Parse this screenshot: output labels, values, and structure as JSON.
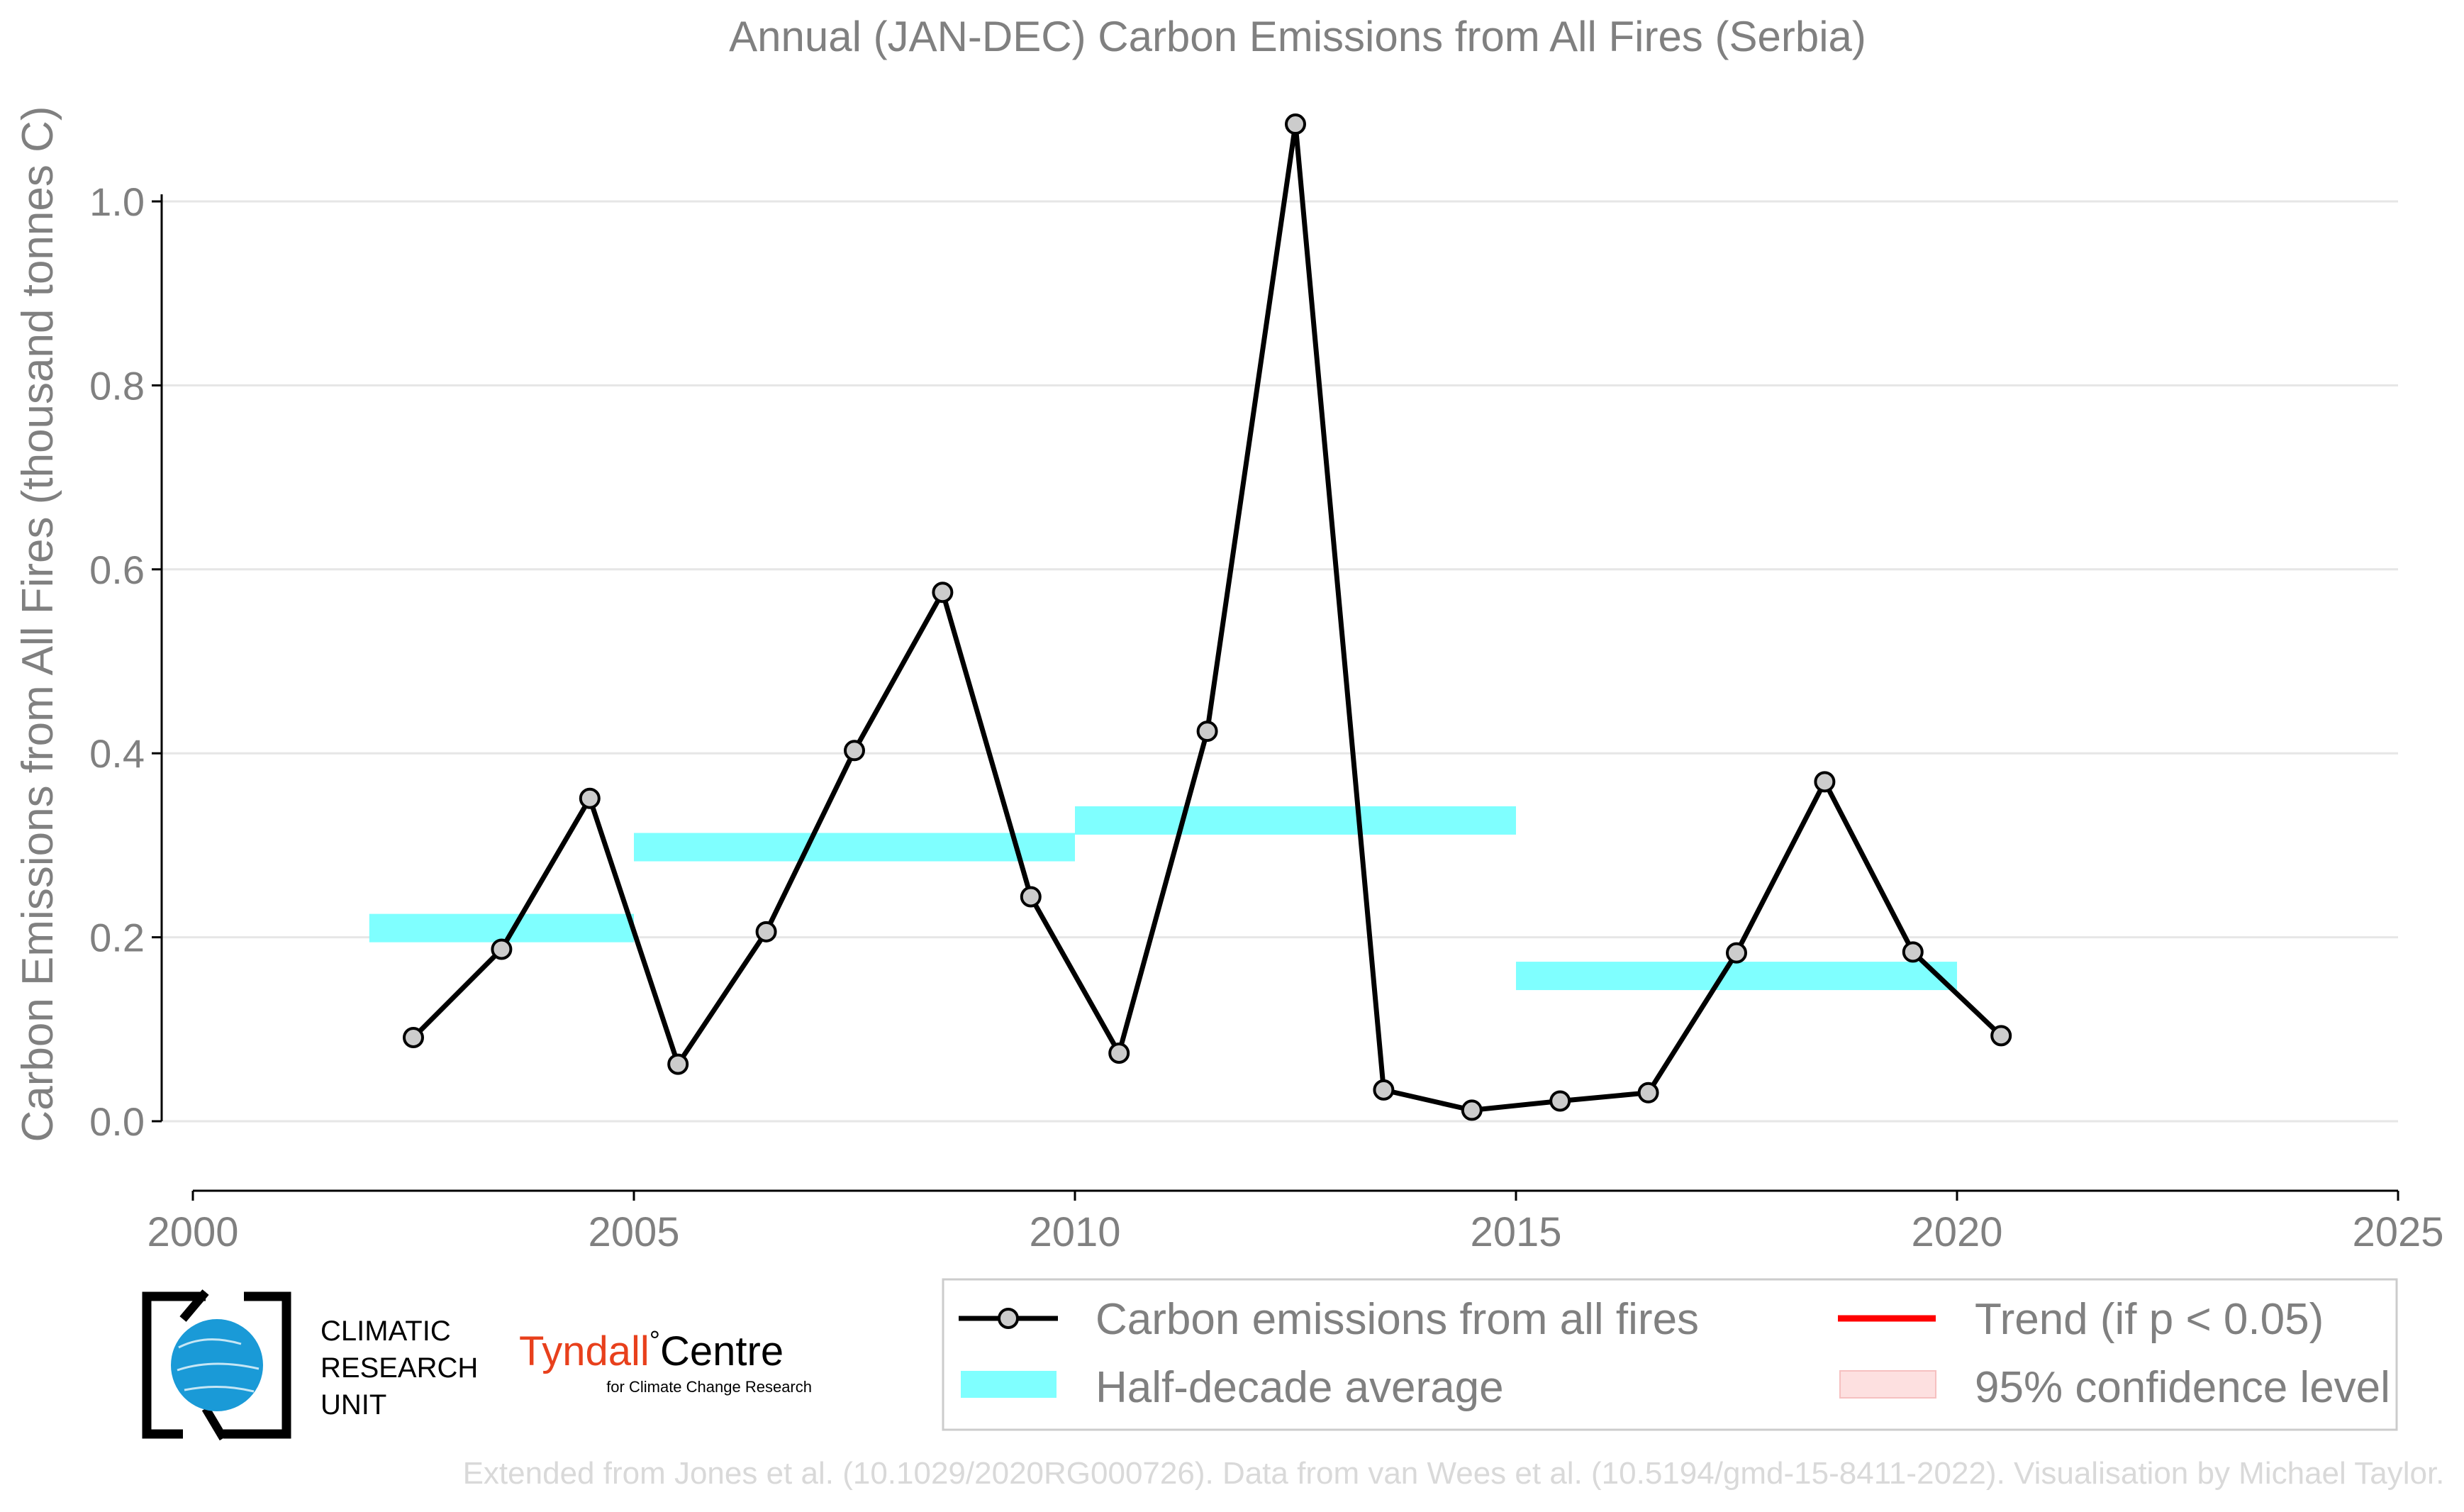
{
  "chart_data": {
    "type": "line",
    "title": "Annual (JAN-DEC) Carbon Emissions from All Fires (Serbia)",
    "xlabel": "",
    "ylabel": "Carbon Emissions from All Fires (thousand tonnes C)",
    "xlim": [
      2000,
      2025
    ],
    "ylim": [
      -0.075,
      1.1
    ],
    "x_ticks": [
      "2000",
      "2005",
      "2010",
      "2015",
      "2020",
      "2025"
    ],
    "y_ticks": [
      "0.0",
      "0.2",
      "0.4",
      "0.6",
      "0.8",
      "1.0"
    ],
    "grid": "horizontal",
    "legend_placement": "bottom-right",
    "series": [
      {
        "name": "Carbon emissions from all fires",
        "color": "#000000",
        "marker_fill": "#cccccc",
        "x": [
          2002.5,
          2003.5,
          2004.5,
          2005.5,
          2006.5,
          2007.5,
          2008.5,
          2009.5,
          2010.5,
          2011.5,
          2012.5,
          2013.5,
          2014.5,
          2015.5,
          2016.5,
          2017.5,
          2018.5,
          2019.5,
          2020.5
        ],
        "y": [
          0.091,
          0.187,
          0.351,
          0.062,
          0.206,
          0.403,
          0.575,
          0.244,
          0.074,
          0.424,
          1.084,
          0.034,
          0.012,
          0.022,
          0.031,
          0.183,
          0.369,
          0.184,
          0.093
        ]
      }
    ],
    "half_decade_average": {
      "name": "Half-decade average",
      "color": "#7fffff",
      "periods": [
        {
          "start": 2002,
          "end": 2005,
          "value": 0.21
        },
        {
          "start": 2005,
          "end": 2010,
          "value": 0.298
        },
        {
          "start": 2010,
          "end": 2015,
          "value": 0.327
        },
        {
          "start": 2015,
          "end": 2020,
          "value": 0.158
        }
      ]
    },
    "legend": [
      {
        "key": "series",
        "label": "Carbon emissions from all fires"
      },
      {
        "key": "trend",
        "label": "Trend (if p < 0.05)",
        "color": "#ff0000"
      },
      {
        "key": "average",
        "label": "Half-decade average",
        "color": "#7fffff"
      },
      {
        "key": "confidence",
        "label": "95% confidence level",
        "color": "#fde0e0"
      }
    ]
  },
  "logos": {
    "cru_lines": [
      "CLIMATIC",
      "RESEARCH",
      "UNIT"
    ],
    "tyndall_name": "Tyndall",
    "tyndall_suffix": "Centre",
    "tyndall_sub": "for Climate Change Research"
  },
  "footer": "Extended from Jones et al. (10.1029/2020RG000726). Data from van Wees et al. (10.5194/gmd-15-8411-2022). Visualisation by Michael Taylor."
}
